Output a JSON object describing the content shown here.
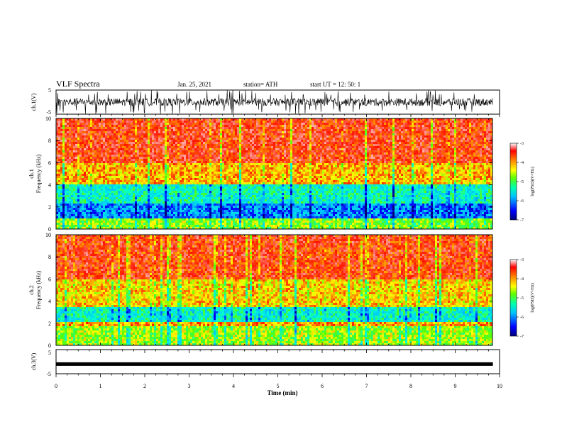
{
  "header": {
    "title": "VLF Spectra",
    "date": "Jan. 25, 2021",
    "station": "station= ATH",
    "start": "start  UT =   12: 50: 1"
  },
  "chart_data": [
    {
      "type": "line",
      "panel": "ch1-waveform",
      "ylabel": "ch.1(V)",
      "ylim": [
        -5,
        5
      ],
      "yticks": [
        -5,
        5
      ],
      "x_unit": "min",
      "xlim": [
        0,
        10
      ]
    },
    {
      "type": "heatmap",
      "panel": "ch1-spectrogram",
      "ylabel_top": "ch.1",
      "ylabel": "Frequency (kHz)",
      "ylim": [
        0,
        10
      ],
      "yticks": [
        0,
        2,
        4,
        6,
        8,
        10
      ],
      "colorbar": {
        "label": "log(PSD)(V²/Hz)",
        "range": [
          -7,
          -3
        ],
        "ticks": [
          -3,
          -4,
          -5,
          -6,
          -7
        ]
      }
    },
    {
      "type": "heatmap",
      "panel": "ch2-spectrogram",
      "ylabel_top": "ch.2",
      "ylabel": "Frequency (kHz)",
      "ylim": [
        0,
        10
      ],
      "yticks": [
        0,
        2,
        4,
        6,
        8,
        10
      ],
      "colorbar": {
        "label": "log(PSD)(V²/Hz)",
        "range": [
          -7,
          -3
        ],
        "ticks": [
          -3,
          -4,
          -5,
          -6,
          -7
        ]
      }
    },
    {
      "type": "line",
      "panel": "ch3-waveform",
      "ylabel": "ch.3(V)",
      "ylim": [
        -5,
        5
      ],
      "yticks": [
        -5,
        5
      ],
      "xlabel": "Time  (min)",
      "xlim": [
        0,
        10
      ],
      "xticks": [
        0,
        1,
        2,
        3,
        4,
        5,
        6,
        7,
        8,
        9,
        10
      ],
      "level_v": -1.0
    }
  ],
  "colors": {
    "scale": [
      "#00007a",
      "#0000ff",
      "#00a0ff",
      "#00ffff",
      "#00ff80",
      "#80ff00",
      "#ffff00",
      "#ffa000",
      "#ff2000",
      "#ffffff"
    ],
    "ink": "#000000"
  }
}
